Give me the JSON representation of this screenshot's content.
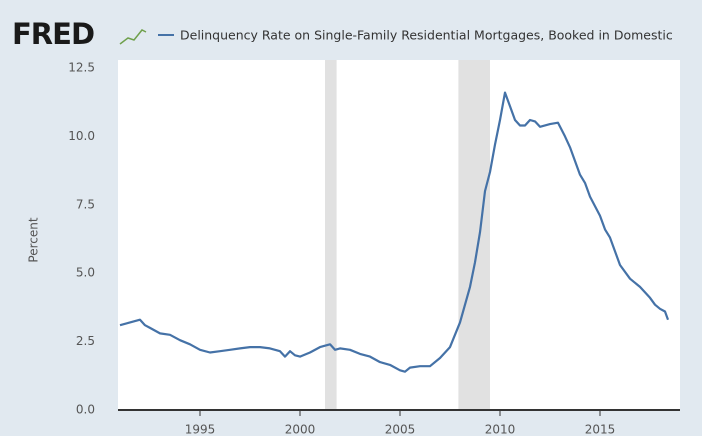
{
  "chart_data": {
    "type": "line",
    "logo": "FRED",
    "title": "Delinquency Rate on Single-Family Residential Mortgages, Booked in Domestic",
    "ylabel": "Percent",
    "xlim": [
      1991,
      2018.5
    ],
    "ylim": [
      0,
      12.5
    ],
    "xticks": [
      1995,
      2000,
      2005,
      2010,
      2015
    ],
    "yticks": [
      {
        "value": 0,
        "label": "0.0"
      },
      2.5,
      {
        "value": 5,
        "label": "5.0"
      },
      7.5,
      {
        "value": 10,
        "label": "10.0"
      },
      12.5
    ],
    "recessions": [
      [
        2001.25,
        2001.83
      ],
      [
        2007.92,
        2009.5
      ]
    ],
    "series": [
      {
        "name": "Delinquency Rate on Single-Family Residential Mortgages, Booked in Domestic",
        "color": "#4572a7",
        "x": [
          1991.0,
          1991.5,
          1992.0,
          1992.25,
          1992.5,
          1993.0,
          1993.5,
          1994.0,
          1994.5,
          1995.0,
          1995.5,
          1996.0,
          1996.5,
          1997.0,
          1997.5,
          1998.0,
          1998.5,
          1999.0,
          1999.25,
          1999.5,
          1999.75,
          2000.0,
          2000.5,
          2001.0,
          2001.5,
          2001.75,
          2002.0,
          2002.5,
          2003.0,
          2003.5,
          2004.0,
          2004.5,
          2005.0,
          2005.25,
          2005.5,
          2006.0,
          2006.5,
          2007.0,
          2007.5,
          2008.0,
          2008.5,
          2008.75,
          2009.0,
          2009.25,
          2009.5,
          2009.75,
          2010.0,
          2010.25,
          2010.5,
          2010.75,
          2011.0,
          2011.25,
          2011.5,
          2011.75,
          2012.0,
          2012.5,
          2012.9,
          2013.25,
          2013.5,
          2014.0,
          2014.25,
          2014.5,
          2015.0,
          2015.25,
          2015.5,
          2016.0,
          2016.5,
          2017.0,
          2017.5,
          2017.75,
          2018.0,
          2018.25,
          2018.4
        ],
        "values": [
          3.1,
          3.2,
          3.3,
          3.1,
          3.0,
          2.8,
          2.75,
          2.55,
          2.4,
          2.2,
          2.1,
          2.15,
          2.2,
          2.25,
          2.3,
          2.3,
          2.25,
          2.15,
          1.95,
          2.15,
          2.0,
          1.95,
          2.1,
          2.3,
          2.4,
          2.2,
          2.25,
          2.2,
          2.05,
          1.95,
          1.75,
          1.65,
          1.45,
          1.4,
          1.55,
          1.6,
          1.6,
          1.9,
          2.3,
          3.2,
          4.5,
          5.4,
          6.5,
          8.0,
          8.7,
          9.7,
          10.6,
          11.6,
          11.1,
          10.6,
          10.4,
          10.4,
          10.6,
          10.55,
          10.35,
          10.45,
          10.5,
          10.0,
          9.6,
          8.6,
          8.3,
          7.8,
          7.1,
          6.6,
          6.3,
          5.3,
          4.8,
          4.5,
          4.1,
          3.85,
          3.7,
          3.6,
          3.3
        ]
      }
    ]
  }
}
